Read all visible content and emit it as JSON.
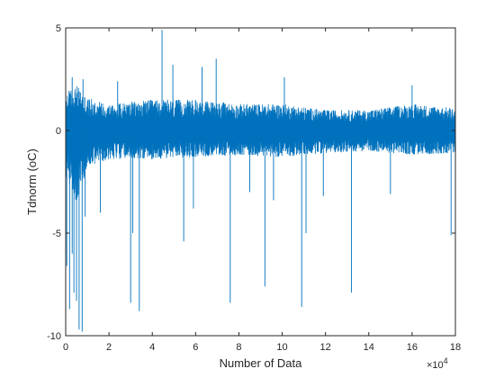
{
  "chart_data": {
    "type": "line",
    "xlabel": "Number of Data",
    "ylabel": "Tdnorm (oC)",
    "xlim": [
      0,
      180000
    ],
    "ylim": [
      -10,
      5
    ],
    "x_ticks": [
      0,
      20000,
      40000,
      60000,
      80000,
      100000,
      120000,
      140000,
      160000,
      180000
    ],
    "x_tick_labels": [
      "0",
      "2",
      "4",
      "6",
      "8",
      "10",
      "12",
      "14",
      "16",
      "18"
    ],
    "x_exponent_label": "×10",
    "x_exponent_power": "4",
    "y_ticks": [
      -10,
      -5,
      0,
      5
    ],
    "y_tick_labels": [
      "-10",
      "-5",
      "0",
      "5"
    ],
    "grid": false,
    "legend": "none",
    "series": [
      {
        "color": "#0072BD",
        "n_points": 180000,
        "approx_mean": 0,
        "band_envelope": [
          {
            "x": 0,
            "lo": -2.2,
            "hi": 1.9
          },
          {
            "x": 5000,
            "lo": -3.5,
            "hi": 2.2
          },
          {
            "x": 10000,
            "lo": -1.8,
            "hi": 1.6
          },
          {
            "x": 20000,
            "lo": -1.4,
            "hi": 1.3
          },
          {
            "x": 40000,
            "lo": -1.4,
            "hi": 1.5
          },
          {
            "x": 60000,
            "lo": -1.3,
            "hi": 1.5
          },
          {
            "x": 80000,
            "lo": -1.2,
            "hi": 1.3
          },
          {
            "x": 100000,
            "lo": -1.3,
            "hi": 1.3
          },
          {
            "x": 120000,
            "lo": -1.1,
            "hi": 1.0
          },
          {
            "x": 140000,
            "lo": -1.0,
            "hi": 1.0
          },
          {
            "x": 160000,
            "lo": -1.2,
            "hi": 1.3
          },
          {
            "x": 180000,
            "lo": -1.1,
            "hi": 1.1
          }
        ],
        "spikes": [
          {
            "x": 500,
            "y": -6.6
          },
          {
            "x": 1800,
            "y": -8.7
          },
          {
            "x": 3000,
            "y": -6.0
          },
          {
            "x": 3800,
            "y": -7.9
          },
          {
            "x": 5000,
            "y": -8.3
          },
          {
            "x": 6200,
            "y": -9.7
          },
          {
            "x": 7600,
            "y": -9.8
          },
          {
            "x": 9000,
            "y": -4.2
          },
          {
            "x": 30000,
            "y": -8.4
          },
          {
            "x": 31000,
            "y": -5.0
          },
          {
            "x": 34000,
            "y": -8.8
          },
          {
            "x": 44500,
            "y": 4.9
          },
          {
            "x": 49500,
            "y": 3.2
          },
          {
            "x": 54500,
            "y": -5.4
          },
          {
            "x": 63000,
            "y": 3.1
          },
          {
            "x": 69500,
            "y": 3.5
          },
          {
            "x": 76000,
            "y": -8.4
          },
          {
            "x": 92000,
            "y": -7.6
          },
          {
            "x": 109000,
            "y": -8.6
          },
          {
            "x": 111000,
            "y": -5.0
          },
          {
            "x": 132000,
            "y": -7.9
          },
          {
            "x": 3000,
            "y": 2.6
          },
          {
            "x": 8000,
            "y": 2.5
          },
          {
            "x": 24000,
            "y": 2.4
          },
          {
            "x": 101000,
            "y": 2.6
          },
          {
            "x": 160000,
            "y": 2.2
          },
          {
            "x": 178000,
            "y": -5.1
          },
          {
            "x": 85000,
            "y": -3.0
          },
          {
            "x": 119000,
            "y": -3.2
          },
          {
            "x": 150000,
            "y": -3.1
          },
          {
            "x": 16000,
            "y": -4.0
          },
          {
            "x": 59000,
            "y": -3.8
          },
          {
            "x": 96000,
            "y": -3.4
          }
        ]
      }
    ]
  }
}
